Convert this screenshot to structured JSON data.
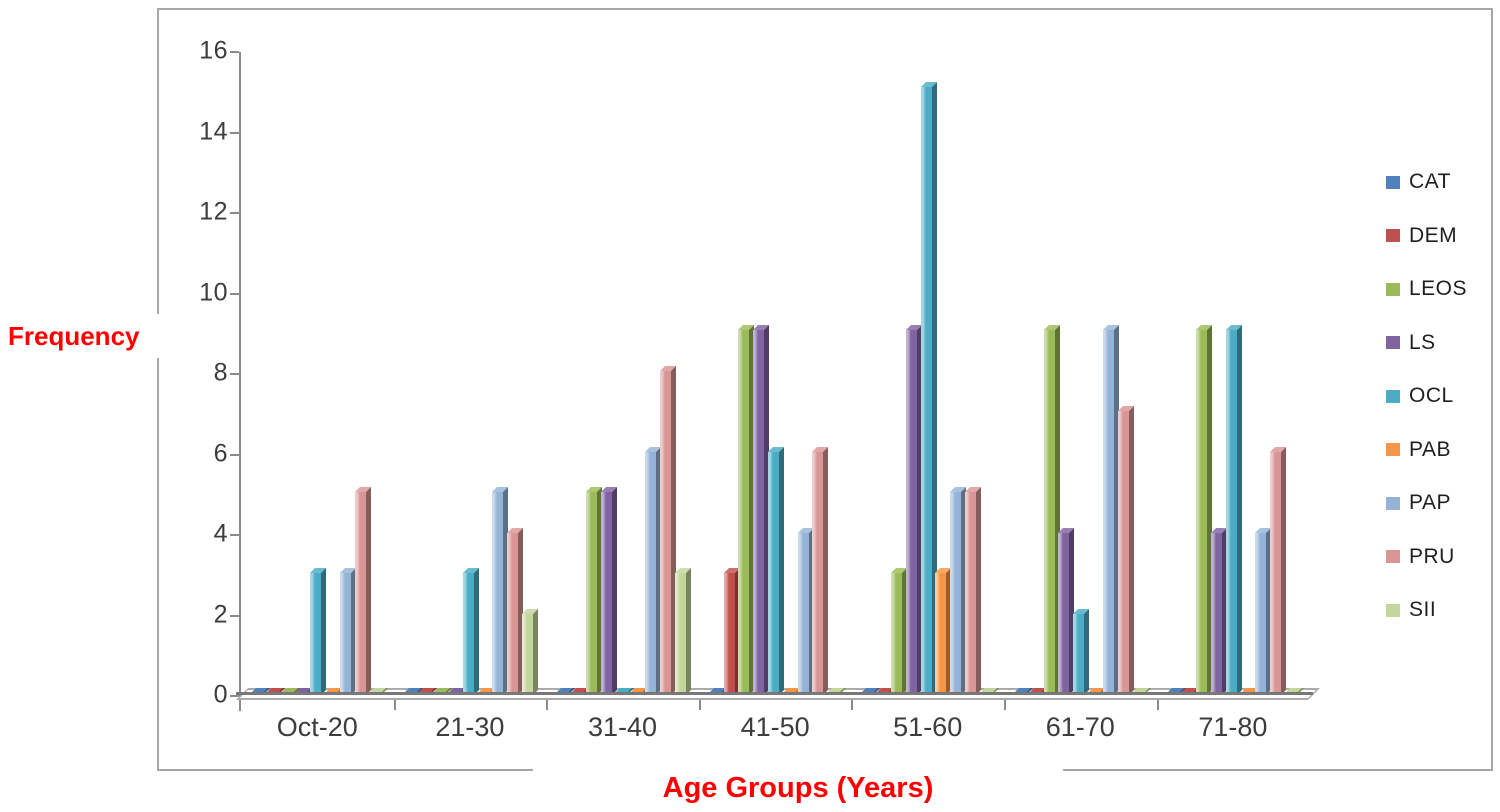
{
  "chart_data": {
    "type": "bar",
    "title": "",
    "xlabel": "Age Groups (Years)",
    "ylabel": "Frequency",
    "categories": [
      "Oct-20",
      "21-30",
      "31-40",
      "41-50",
      "51-60",
      "61-70",
      "71-80"
    ],
    "series": [
      {
        "name": "CAT",
        "color": "#4F81BD",
        "values": [
          0,
          0,
          0,
          0,
          0,
          0,
          0
        ]
      },
      {
        "name": "DEM",
        "color": "#C0504D",
        "values": [
          0,
          0,
          0,
          3,
          0,
          0,
          0
        ]
      },
      {
        "name": "LEOS",
        "color": "#9BBB59",
        "values": [
          0,
          0,
          5,
          9,
          3,
          9,
          9
        ]
      },
      {
        "name": "LS",
        "color": "#8064A2",
        "values": [
          0,
          0,
          5,
          9,
          9,
          4,
          4
        ]
      },
      {
        "name": "OCL",
        "color": "#4BACC6",
        "values": [
          3,
          3,
          0,
          6,
          15,
          2,
          9
        ]
      },
      {
        "name": "PAB",
        "color": "#F79646",
        "values": [
          0,
          0,
          0,
          0,
          3,
          0,
          0
        ]
      },
      {
        "name": "PAP",
        "color": "#95B3D7",
        "values": [
          3,
          5,
          6,
          4,
          5,
          9,
          4
        ]
      },
      {
        "name": "PRU",
        "color": "#D99694",
        "values": [
          5,
          4,
          8,
          6,
          5,
          7,
          6
        ]
      },
      {
        "name": "SII",
        "color": "#C3D69B",
        "values": [
          0,
          2,
          3,
          0,
          0,
          0,
          0
        ]
      }
    ],
    "ylim": [
      0,
      16
    ],
    "ytick_step": 2,
    "yticks": [
      16,
      14,
      12,
      10,
      8,
      6,
      4,
      2,
      0
    ],
    "grid": false,
    "legend_position": "right",
    "axis_title_color": "#FF0000",
    "effect": "3d-clustered-column"
  }
}
